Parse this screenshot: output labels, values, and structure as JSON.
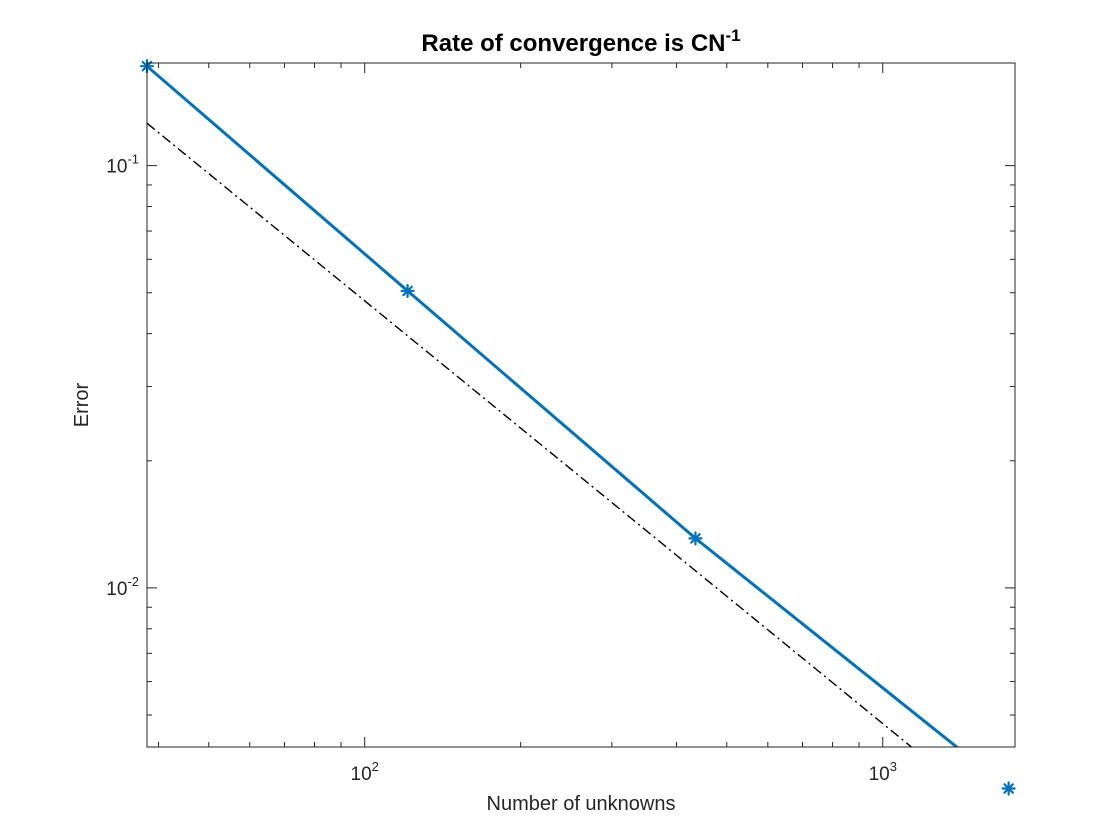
{
  "chart_data": {
    "type": "line",
    "title": {
      "main": "Rate of convergence is CN",
      "superscript": "-1"
    },
    "xlabel": "Number of unknowns",
    "ylabel": "Error",
    "xscale": "log",
    "yscale": "log",
    "xlim": [
      38,
      1800
    ],
    "ylim": [
      0.0042,
      0.175
    ],
    "grid": false,
    "box": true,
    "xticks": [
      {
        "value": 100,
        "base": "10",
        "exp": "2"
      },
      {
        "value": 1000,
        "base": "10",
        "exp": "3"
      }
    ],
    "yticks": [
      {
        "value": 0.1,
        "base": "10",
        "exp": "-1"
      },
      {
        "value": 0.01,
        "base": "10",
        "exp": "-2"
      }
    ],
    "series": [
      {
        "style": "solid",
        "marker": "asterisk",
        "color": "#0072BD",
        "x": [
          38,
          121,
          435,
          1750
        ],
        "y": [
          0.172,
          0.0505,
          0.0131,
          0.00335
        ]
      },
      {
        "style": "dashdot",
        "marker": "none",
        "color": "#000000",
        "x": [
          38,
          1800
        ],
        "y": [
          0.126,
          0.00265
        ]
      }
    ]
  }
}
